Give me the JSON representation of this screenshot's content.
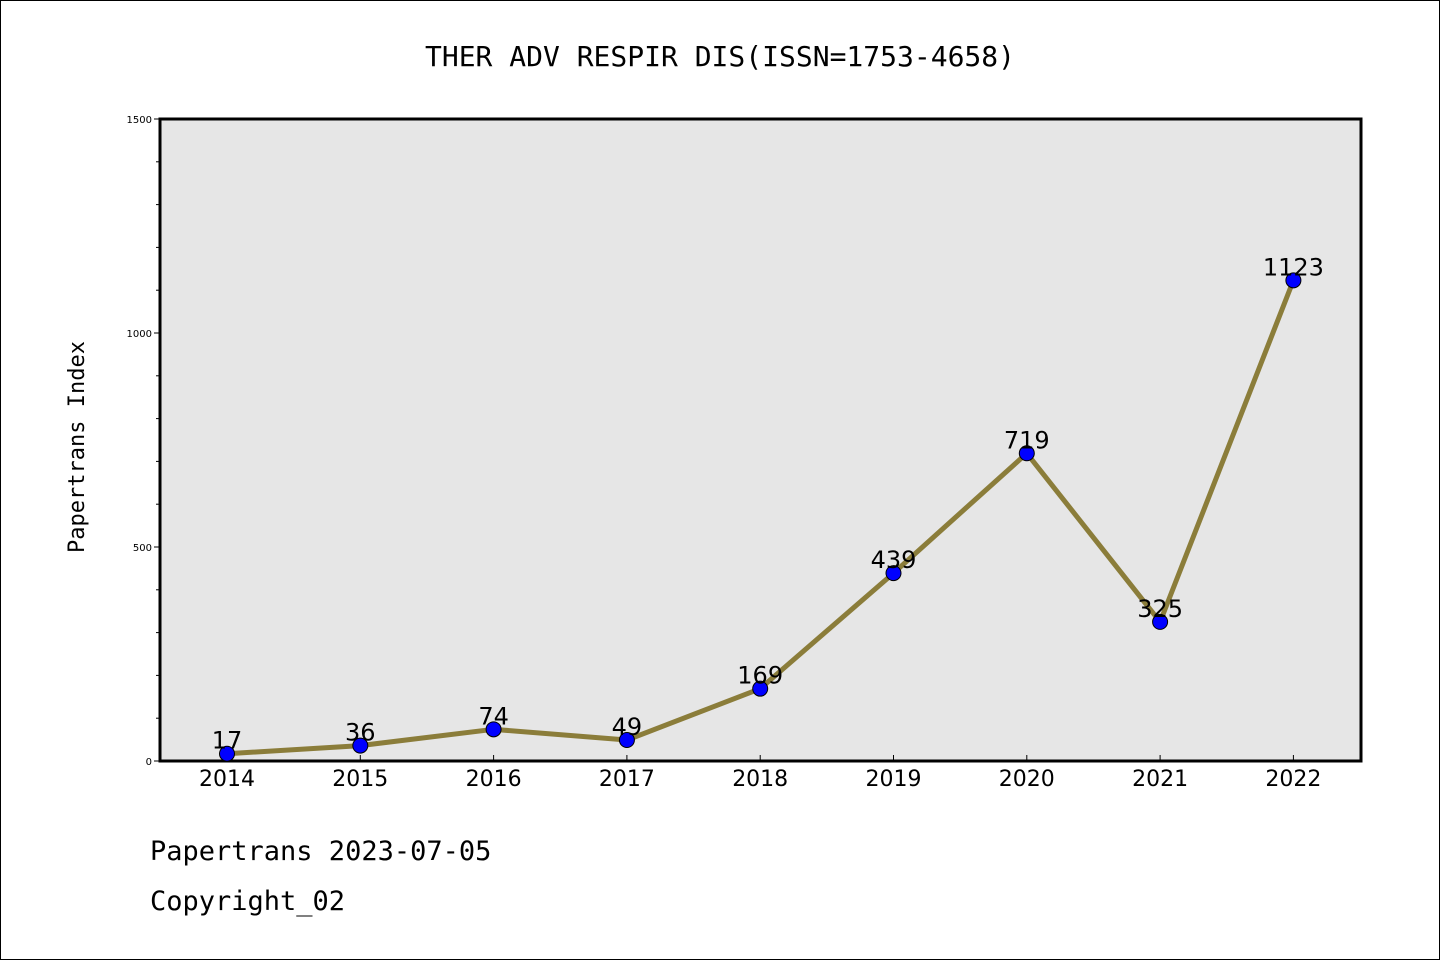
{
  "chart_data": {
    "type": "line",
    "title": "THER ADV RESPIR DIS(ISSN=1753-4658)",
    "xlabel": "",
    "ylabel": "Papertrans Index",
    "categories": [
      "2014",
      "2015",
      "2016",
      "2017",
      "2018",
      "2019",
      "2020",
      "2021",
      "2022"
    ],
    "series": [
      {
        "values": [
          17,
          36,
          74,
          49,
          169,
          439,
          719,
          325,
          1123
        ]
      }
    ],
    "ylim": [
      0,
      1500
    ],
    "yticks": [
      0,
      500,
      1000,
      1500
    ],
    "grid": false,
    "colors": {
      "line": "#8b7d3a",
      "marker": "#0000ff",
      "plot_bg": "#e6e6e6"
    }
  },
  "footer": {
    "line1": "Papertrans 2023-07-05",
    "line2": "Copyright_02"
  }
}
